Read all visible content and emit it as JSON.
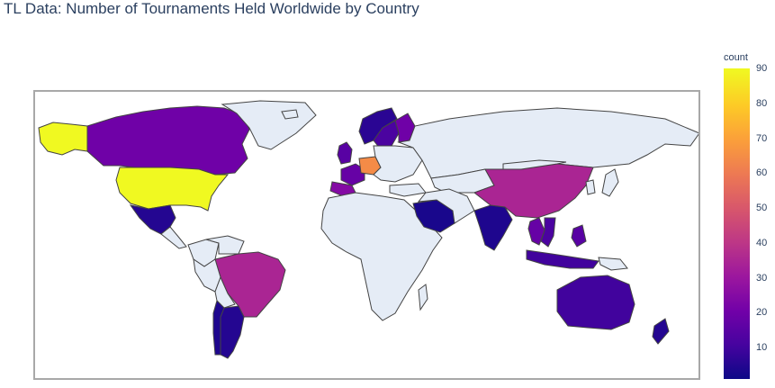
{
  "title": "TL Data: Number of Tournaments Held Worldwide by Country",
  "colorbar": {
    "title": "count",
    "ticks": [
      "90",
      "80",
      "70",
      "60",
      "50",
      "40",
      "30",
      "20",
      "10"
    ],
    "range": [
      1,
      90
    ],
    "colorscale": "Plasma"
  },
  "colors": {
    "land_default": "#e5ecf6",
    "coastline": "#444444",
    "frame": "#a8a8a8"
  },
  "chart_data": {
    "type": "choropleth",
    "title": "TL Data: Number of Tournaments Held Worldwide by Country",
    "color_variable": "count",
    "color_range": [
      1,
      90
    ],
    "regions": [
      {
        "country": "United States",
        "count": 90
      },
      {
        "country": "Canada",
        "count": 20
      },
      {
        "country": "Mexico",
        "count": 5
      },
      {
        "country": "Brazil",
        "count": 35
      },
      {
        "country": "Argentina",
        "count": 5
      },
      {
        "country": "Chile",
        "count": 4
      },
      {
        "country": "Germany",
        "count": 65
      },
      {
        "country": "France",
        "count": 18
      },
      {
        "country": "Spain",
        "count": 25
      },
      {
        "country": "United Kingdom",
        "count": 15
      },
      {
        "country": "Sweden",
        "count": 12
      },
      {
        "country": "Finland",
        "count": 20
      },
      {
        "country": "Norway",
        "count": 6
      },
      {
        "country": "Saudi Arabia",
        "count": 3
      },
      {
        "country": "India",
        "count": 4
      },
      {
        "country": "China",
        "count": 35
      },
      {
        "country": "Thailand",
        "count": 18
      },
      {
        "country": "Vietnam",
        "count": 12
      },
      {
        "country": "Indonesia",
        "count": 10
      },
      {
        "country": "Philippines",
        "count": 15
      },
      {
        "country": "Australia",
        "count": 10
      },
      {
        "country": "New Zealand",
        "count": 5
      }
    ]
  }
}
